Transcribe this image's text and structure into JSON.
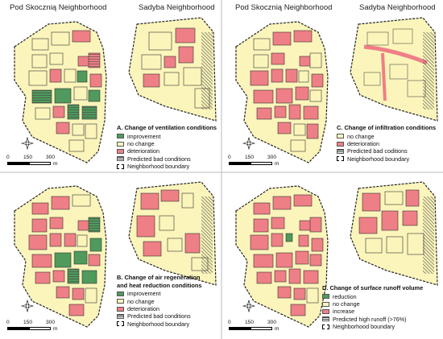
{
  "headers": {
    "left_hood": "Pod Skocznią Neighborhood",
    "right_hood": "Sadyba Neighborhood"
  },
  "panels": [
    {
      "id": "A",
      "title_lines": [
        "A. Change of ventilation conditions"
      ],
      "legend": [
        {
          "label": "improvement",
          "color": "#4f9a5c",
          "kind": "fill"
        },
        {
          "label": "no change",
          "color": "#fbf5bb",
          "kind": "fill"
        },
        {
          "label": "deterioration",
          "color": "#ef7f86",
          "kind": "fill"
        },
        {
          "label": "Predicted bad conditions",
          "color": "#444444",
          "kind": "hatch"
        },
        {
          "label": "Neighborhood boundary",
          "color": "#000000",
          "kind": "boundary"
        }
      ]
    },
    {
      "id": "C",
      "title_lines": [
        "C. Change of infiltration conditions"
      ],
      "legend": [
        {
          "label": "no change",
          "color": "#fbf5bb",
          "kind": "fill"
        },
        {
          "label": "deterioration",
          "color": "#ef7f86",
          "kind": "fill"
        },
        {
          "label": "Predicted bad coditions",
          "color": "#444444",
          "kind": "hatch"
        },
        {
          "label": "Neighborhood boundary",
          "color": "#000000",
          "kind": "boundary"
        }
      ]
    },
    {
      "id": "B",
      "title_lines": [
        "B. Change of air regeneration",
        "and heat reduction conditions"
      ],
      "legend": [
        {
          "label": "improvement",
          "color": "#4f9a5c",
          "kind": "fill"
        },
        {
          "label": "no change",
          "color": "#fbf5bb",
          "kind": "fill"
        },
        {
          "label": "deterioration",
          "color": "#ef7f86",
          "kind": "fill"
        },
        {
          "label": "Predicted bad conditions",
          "color": "#444444",
          "kind": "hatch"
        },
        {
          "label": "Neighborhood boundary",
          "color": "#000000",
          "kind": "boundary"
        }
      ]
    },
    {
      "id": "D",
      "title_lines": [
        "D. Change of surface runoff volume"
      ],
      "legend": [
        {
          "label": "reduction",
          "color": "#4f9a5c",
          "kind": "fill"
        },
        {
          "label": "no change",
          "color": "#fbf5bb",
          "kind": "fill"
        },
        {
          "label": "increase",
          "color": "#ef7f86",
          "kind": "fill"
        },
        {
          "label": "Predicted high runoff (>76%)",
          "color": "#444444",
          "kind": "hatch"
        },
        {
          "label": "Neighborhood boundary",
          "color": "#000000",
          "kind": "boundary"
        }
      ]
    }
  ],
  "scalebar": {
    "ticks": [
      "0",
      "150",
      "300"
    ],
    "unit": "m"
  },
  "north_arrow_icon": "north-arrow-icon"
}
